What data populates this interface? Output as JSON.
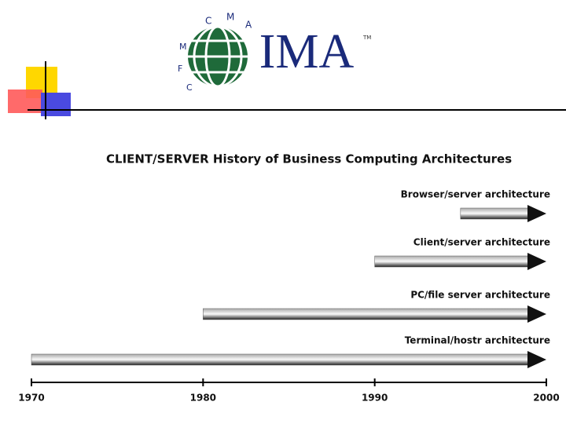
{
  "logo": {
    "name": "IMA",
    "trademark": "TM",
    "ring": [
      "C",
      "M",
      "A",
      "C",
      "F",
      "M"
    ]
  },
  "chart_data": {
    "type": "timeline",
    "title": "CLIENT/SERVER History of Business Computing Architectures",
    "tasks": [
      {
        "name": "Browser/server architecture",
        "start": 1995,
        "end": 2000
      },
      {
        "name": "Client/server architecture",
        "start": 1990,
        "end": 2000
      },
      {
        "name": "PC/file server architecture",
        "start": 1980,
        "end": 2000
      },
      {
        "name": "Terminal/hostr architecture",
        "start": 1970,
        "end": 2000
      }
    ],
    "color": "#555555",
    "xlim": [
      1970,
      2000
    ],
    "xticks": [
      1970,
      1980,
      1990,
      2000
    ]
  }
}
